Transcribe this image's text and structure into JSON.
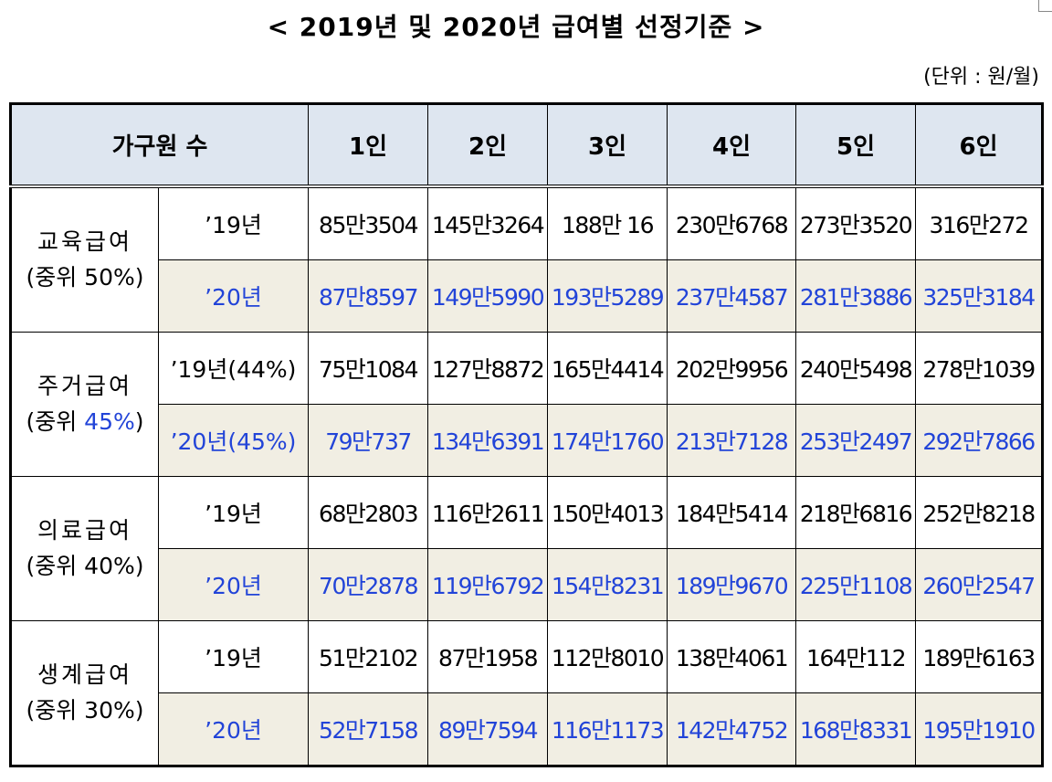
{
  "title": "< 2019년 및 2020년 급여별 선정기준 >",
  "unit": "(단위 : 원/월)",
  "columns": {
    "header": "가구원 수",
    "sizes": [
      "1인",
      "2인",
      "3인",
      "4인",
      "5인",
      "6인"
    ]
  },
  "benefits": [
    {
      "name": "교육급여",
      "median_pre": "(중위 ",
      "median_pct": "50%",
      "median_post": ")",
      "pct_highlight": false,
      "rows": [
        {
          "year": "’19년",
          "values": [
            "85만3504",
            "145만3264",
            "188만 16",
            "230만6768",
            "273만3520",
            "316만272"
          ]
        },
        {
          "year": "’20년",
          "values": [
            "87만8597",
            "149만5990",
            "193만5289",
            "237만4587",
            "281만3886",
            "325만3184"
          ]
        }
      ]
    },
    {
      "name": "주거급여",
      "median_pre": "(중위 ",
      "median_pct": "45%",
      "median_post": ")",
      "pct_highlight": true,
      "rows": [
        {
          "year": "’19년(44%)",
          "values": [
            "75만1084",
            "127만8872",
            "165만4414",
            "202만9956",
            "240만5498",
            "278만1039"
          ]
        },
        {
          "year": "’20년(45%)",
          "values": [
            "79만737",
            "134만6391",
            "174만1760",
            "213만7128",
            "253만2497",
            "292만7866"
          ]
        }
      ]
    },
    {
      "name": "의료급여",
      "median_pre": "(중위 ",
      "median_pct": "40%",
      "median_post": ")",
      "pct_highlight": false,
      "rows": [
        {
          "year": "’19년",
          "values": [
            "68만2803",
            "116만2611",
            "150만4013",
            "184만5414",
            "218만6816",
            "252만8218"
          ]
        },
        {
          "year": "’20년",
          "values": [
            "70만2878",
            "119만6792",
            "154만8231",
            "189만9670",
            "225만1108",
            "260만2547"
          ]
        }
      ]
    },
    {
      "name": "생계급여",
      "median_pre": "(중위 ",
      "median_pct": "30%",
      "median_post": ")",
      "pct_highlight": false,
      "rows": [
        {
          "year": "’19년",
          "values": [
            "51만2102",
            "87만1958",
            "112만8010",
            "138만4061",
            "164만112",
            "189만6163"
          ]
        },
        {
          "year": "’20년",
          "values": [
            "52만7158",
            "89만7594",
            "116만1173",
            "142만4752",
            "168만8331",
            "195만1910"
          ]
        }
      ]
    }
  ],
  "colors": {
    "header_bg": "#dee6f0",
    "row2020_bg": "#f1eee3",
    "accent_blue": "#2244d8"
  }
}
